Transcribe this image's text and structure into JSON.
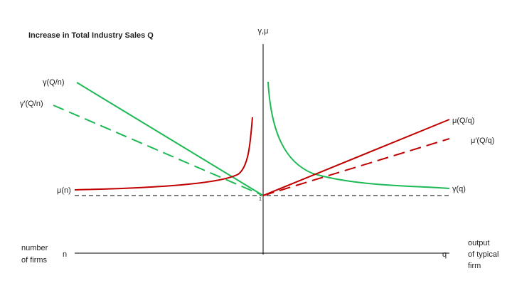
{
  "title": "Increase in Total Industry Sales Q",
  "axes": {
    "vertical_label": "γ,μ",
    "origin_label": "1",
    "left_end": "n",
    "right_end": "q",
    "left_caption": [
      "number",
      "of firms"
    ],
    "right_caption": [
      "output",
      "of typical",
      "firm"
    ]
  },
  "curves": {
    "gamma_Qn": "γ(Q/n)",
    "gamma_prime_Qn": "γ′(Q/n)",
    "mu_n": "μ(n)",
    "mu_Qq": "μ(Q/q)",
    "mu_prime_Qq": "μ′(Q/q)",
    "gamma_q": "γ(q)"
  }
}
